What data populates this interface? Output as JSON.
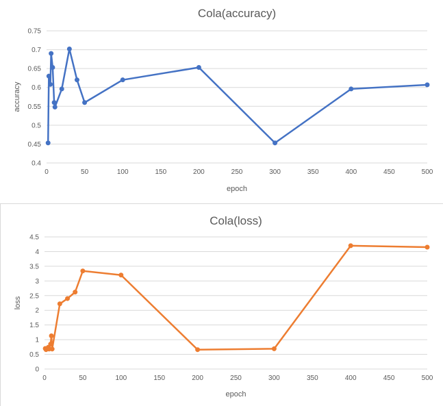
{
  "chart_data": [
    {
      "type": "line",
      "title": "Cola(accuracy)",
      "xlabel": "epoch",
      "ylabel": "accuracy",
      "xlim": [
        0,
        500
      ],
      "ylim": [
        0.4,
        0.75
      ],
      "xticks": [
        0,
        50,
        100,
        150,
        200,
        250,
        300,
        350,
        400,
        450,
        500
      ],
      "yticks": [
        0.4,
        0.45,
        0.5,
        0.55,
        0.6,
        0.65,
        0.7,
        0.75
      ],
      "ytick_labels": [
        "0.4",
        "0.45",
        "0.5",
        "0.55",
        "0.6",
        "0.65",
        "0.7",
        "0.75"
      ],
      "grid": true,
      "color": "#4472c4",
      "series": [
        {
          "x": [
            2,
            3,
            5,
            6,
            8,
            10,
            11,
            20,
            30,
            40,
            50,
            100,
            200,
            300,
            400,
            500
          ],
          "y": [
            0.453,
            0.63,
            0.608,
            0.69,
            0.653,
            0.56,
            0.548,
            0.596,
            0.702,
            0.62,
            0.56,
            0.62,
            0.653,
            0.453,
            0.596,
            0.607
          ]
        }
      ]
    },
    {
      "type": "line",
      "title": "Cola(loss)",
      "xlabel": "epoch",
      "ylabel": "loss",
      "xlim": [
        0,
        500
      ],
      "ylim": [
        0,
        4.5
      ],
      "xticks": [
        0,
        50,
        100,
        150,
        200,
        250,
        300,
        350,
        400,
        450,
        500
      ],
      "yticks": [
        0,
        0.5,
        1,
        1.5,
        2,
        2.5,
        3,
        3.5,
        4,
        4.5
      ],
      "ytick_labels": [
        "0",
        "0.5",
        "1",
        "1.5",
        "2",
        "2.5",
        "3",
        "3.5",
        "4",
        "4.5"
      ],
      "grid": true,
      "color": "#ed7d31",
      "series": [
        {
          "x": [
            1,
            2,
            4,
            5,
            6,
            8,
            9,
            10,
            20,
            30,
            40,
            50,
            100,
            200,
            300,
            400,
            500
          ],
          "y": [
            0.7,
            0.66,
            0.71,
            0.74,
            0.68,
            0.85,
            1.13,
            0.68,
            2.22,
            2.4,
            2.62,
            3.34,
            3.2,
            0.66,
            0.69,
            4.2,
            4.15
          ]
        }
      ]
    }
  ]
}
